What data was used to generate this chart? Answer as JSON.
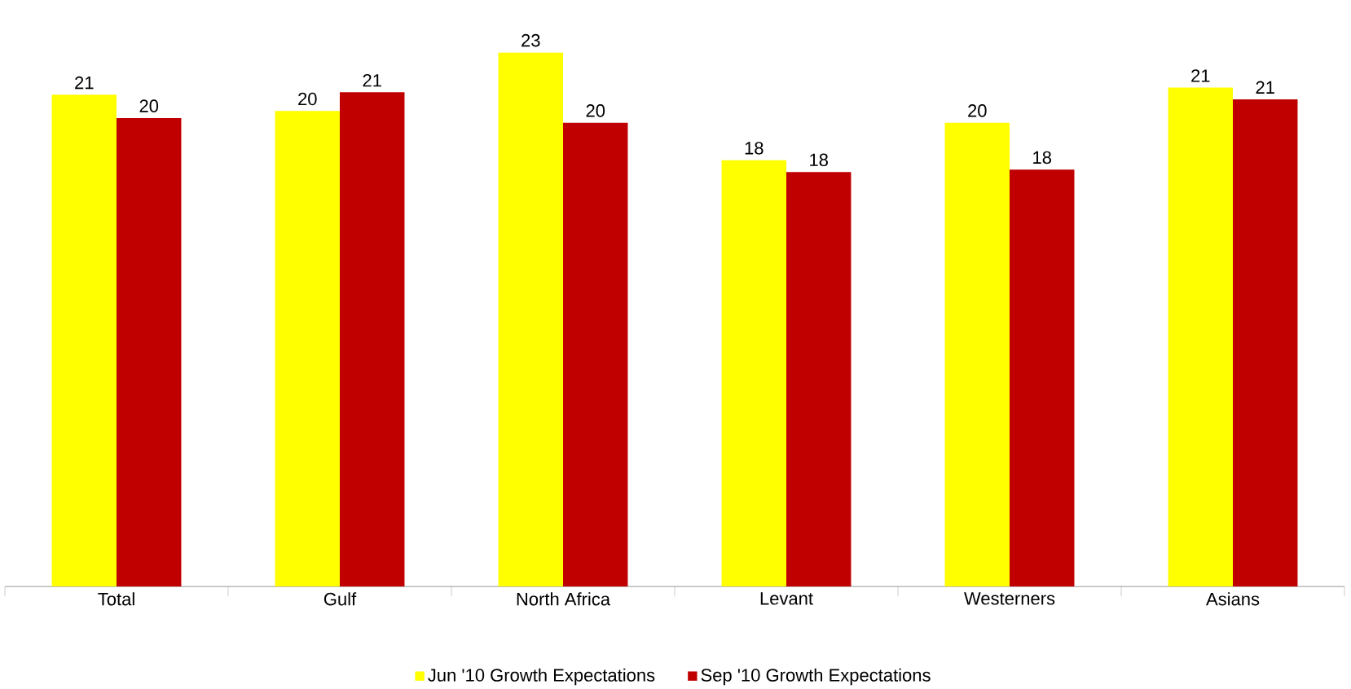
{
  "chart_data": {
    "type": "bar",
    "categories": [
      "Total",
      "Gulf",
      "North Africa",
      "Levant",
      "Westerners",
      "Asians"
    ],
    "series": [
      {
        "name": "Jun '10 Growth Expectations",
        "color": "#ffff00",
        "values": [
          21.0,
          20.3,
          22.8,
          18.2,
          19.8,
          21.3
        ],
        "value_labels": [
          "21",
          "20",
          "23",
          "18",
          "20",
          "21"
        ]
      },
      {
        "name": "Sep '10 Growth Expectations",
        "color": "#c00000",
        "values": [
          20.0,
          21.1,
          19.8,
          17.7,
          17.8,
          20.8
        ],
        "value_labels": [
          "20",
          "21",
          "20",
          "18",
          "18",
          "21"
        ]
      }
    ],
    "legend": "bottom",
    "grid": false
  }
}
